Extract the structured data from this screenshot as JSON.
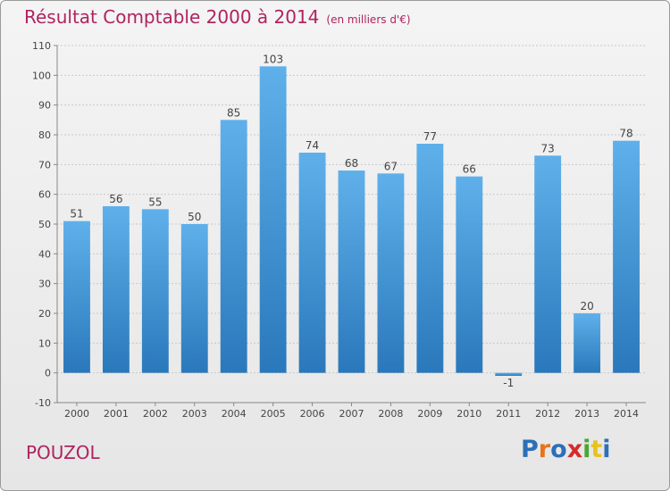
{
  "chart_data": {
    "type": "bar",
    "title": "Résultat Comptable 2000 à 2014",
    "subtitle": "(en milliers d'€)",
    "categories": [
      "2000",
      "2001",
      "2002",
      "2003",
      "2004",
      "2005",
      "2006",
      "2007",
      "2008",
      "2009",
      "2010",
      "2011",
      "2012",
      "2013",
      "2014"
    ],
    "values": [
      51,
      56,
      55,
      50,
      85,
      103,
      74,
      68,
      67,
      77,
      66,
      -1,
      73,
      20,
      78
    ],
    "ylim": [
      -10,
      110
    ],
    "yticks": [
      -10,
      0,
      10,
      20,
      30,
      40,
      50,
      60,
      70,
      80,
      90,
      100,
      110
    ],
    "grid": true,
    "bar_color": "#4d9fdc"
  },
  "location": "POUZOL",
  "logo": {
    "letters": [
      "P",
      "r",
      "o",
      "x",
      "i",
      "t",
      "i"
    ],
    "colors": [
      "#2c6fb8",
      "#e8731c",
      "#2c6fb8",
      "#d62b2b",
      "#49a735",
      "#e8c21c",
      "#2c6fb8"
    ]
  }
}
